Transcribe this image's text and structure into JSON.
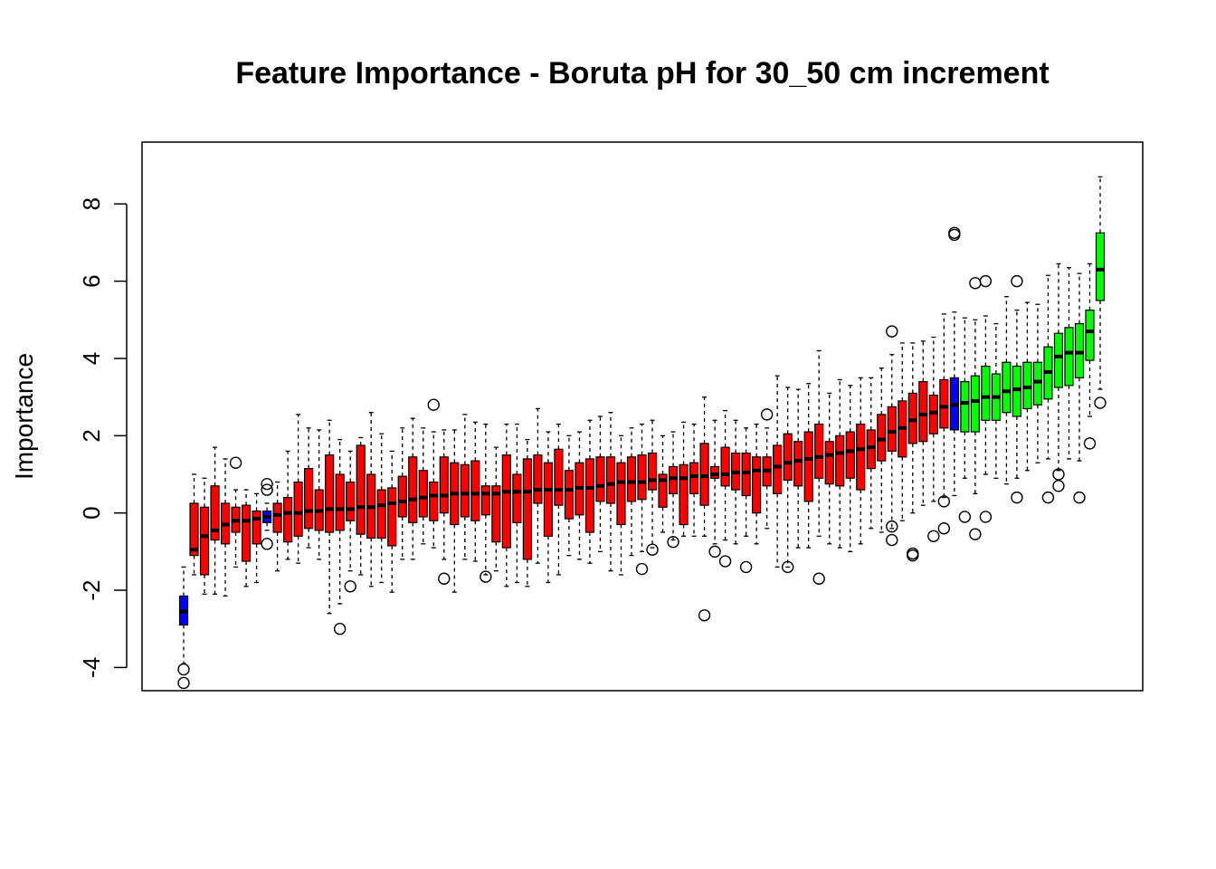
{
  "chart_data": {
    "type": "box",
    "title": "Feature Importance - Boruta pH for 30_50 cm increment",
    "xlabel": "",
    "ylabel": "Importance",
    "ylim": [
      -4.6,
      9.6
    ],
    "yticks": [
      -4,
      -2,
      0,
      2,
      4,
      6,
      8
    ],
    "colors": {
      "rejected": "#ff0000",
      "confirmed": "#00ff00",
      "shadow": "#0000ff",
      "median": "#000000"
    },
    "boxes": [
      {
        "status": "shadow",
        "wlo": -3.9,
        "q1": -2.9,
        "med": -2.55,
        "q3": -2.15,
        "whi": -1.4,
        "out": [
          -4.05,
          -4.4
        ]
      },
      {
        "status": "rejected",
        "wlo": -1.6,
        "q1": -1.1,
        "med": -0.95,
        "q3": 0.25,
        "whi": 1.0,
        "out": []
      },
      {
        "status": "rejected",
        "wlo": -2.1,
        "q1": -1.6,
        "med": -0.6,
        "q3": 0.15,
        "whi": 0.9,
        "out": []
      },
      {
        "status": "rejected",
        "wlo": -2.1,
        "q1": -0.7,
        "med": -0.45,
        "q3": 0.7,
        "whi": 1.7,
        "out": []
      },
      {
        "status": "rejected",
        "wlo": -2.15,
        "q1": -0.8,
        "med": -0.3,
        "q3": 0.25,
        "whi": 1.4,
        "out": []
      },
      {
        "status": "rejected",
        "wlo": -1.4,
        "q1": -0.5,
        "med": -0.2,
        "q3": 0.15,
        "whi": 0.6,
        "out": [
          1.3
        ]
      },
      {
        "status": "rejected",
        "wlo": -1.9,
        "q1": -1.25,
        "med": -0.2,
        "q3": 0.2,
        "whi": 0.6,
        "out": []
      },
      {
        "status": "rejected",
        "wlo": -1.8,
        "q1": -0.8,
        "med": -0.15,
        "q3": 0.05,
        "whi": 0.5,
        "out": []
      },
      {
        "status": "shadow",
        "wlo": -0.45,
        "q1": -0.25,
        "med": -0.1,
        "q3": 0.05,
        "whi": 0.25,
        "out": [
          0.75,
          0.6,
          -0.8
        ]
      },
      {
        "status": "rejected",
        "wlo": -1.5,
        "q1": -0.5,
        "med": -0.05,
        "q3": 0.25,
        "whi": 0.8,
        "out": []
      },
      {
        "status": "rejected",
        "wlo": -1.2,
        "q1": -0.75,
        "med": 0.0,
        "q3": 0.4,
        "whi": 1.6,
        "out": []
      },
      {
        "status": "rejected",
        "wlo": -1.3,
        "q1": -0.6,
        "med": 0.0,
        "q3": 0.8,
        "whi": 2.55,
        "out": []
      },
      {
        "status": "rejected",
        "wlo": -0.9,
        "q1": -0.4,
        "med": 0.05,
        "q3": 1.15,
        "whi": 2.2,
        "out": []
      },
      {
        "status": "rejected",
        "wlo": -1.2,
        "q1": -0.45,
        "med": 0.05,
        "q3": 0.6,
        "whi": 2.15,
        "out": []
      },
      {
        "status": "rejected",
        "wlo": -2.6,
        "q1": -0.5,
        "med": 0.1,
        "q3": 1.5,
        "whi": 2.4,
        "out": []
      },
      {
        "status": "rejected",
        "wlo": -2.35,
        "q1": -0.45,
        "med": 0.1,
        "q3": 1.0,
        "whi": 1.9,
        "out": [
          -3.0
        ]
      },
      {
        "status": "rejected",
        "wlo": -1.5,
        "q1": -0.2,
        "med": 0.1,
        "q3": 0.8,
        "whi": 1.6,
        "out": [
          -1.9
        ]
      },
      {
        "status": "rejected",
        "wlo": -1.6,
        "q1": -0.55,
        "med": 0.15,
        "q3": 1.75,
        "whi": 1.95,
        "out": []
      },
      {
        "status": "rejected",
        "wlo": -1.9,
        "q1": -0.65,
        "med": 0.15,
        "q3": 1.0,
        "whi": 2.6,
        "out": []
      },
      {
        "status": "rejected",
        "wlo": -1.8,
        "q1": -0.65,
        "med": 0.2,
        "q3": 0.6,
        "whi": 2.05,
        "out": []
      },
      {
        "status": "rejected",
        "wlo": -2.05,
        "q1": -0.85,
        "med": 0.25,
        "q3": 0.65,
        "whi": 1.6,
        "out": []
      },
      {
        "status": "rejected",
        "wlo": -1.2,
        "q1": -0.1,
        "med": 0.3,
        "q3": 0.95,
        "whi": 2.2,
        "out": []
      },
      {
        "status": "rejected",
        "wlo": -1.2,
        "q1": -0.25,
        "med": 0.35,
        "q3": 1.45,
        "whi": 2.45,
        "out": []
      },
      {
        "status": "rejected",
        "wlo": -0.8,
        "q1": -0.1,
        "med": 0.4,
        "q3": 1.1,
        "whi": 2.2,
        "out": []
      },
      {
        "status": "rejected",
        "wlo": -0.9,
        "q1": -0.2,
        "med": 0.45,
        "q3": 0.8,
        "whi": 2.1,
        "out": [
          2.8
        ]
      },
      {
        "status": "rejected",
        "wlo": -1.2,
        "q1": 0.0,
        "med": 0.45,
        "q3": 1.45,
        "whi": 2.15,
        "out": [
          -1.7
        ]
      },
      {
        "status": "rejected",
        "wlo": -2.05,
        "q1": -0.3,
        "med": 0.5,
        "q3": 1.3,
        "whi": 2.15,
        "out": []
      },
      {
        "status": "rejected",
        "wlo": -1.2,
        "q1": -0.1,
        "med": 0.5,
        "q3": 1.25,
        "whi": 2.55,
        "out": []
      },
      {
        "status": "rejected",
        "wlo": -1.25,
        "q1": -0.2,
        "med": 0.5,
        "q3": 1.35,
        "whi": 2.35,
        "out": []
      },
      {
        "status": "rejected",
        "wlo": -1.6,
        "q1": -0.05,
        "med": 0.5,
        "q3": 0.7,
        "whi": 2.3,
        "out": [
          -1.65
        ]
      },
      {
        "status": "rejected",
        "wlo": -1.5,
        "q1": -0.75,
        "med": 0.5,
        "q3": 0.7,
        "whi": 1.7,
        "out": []
      },
      {
        "status": "rejected",
        "wlo": -1.9,
        "q1": -0.9,
        "med": 0.55,
        "q3": 1.5,
        "whi": 2.3,
        "out": []
      },
      {
        "status": "rejected",
        "wlo": -1.8,
        "q1": -0.25,
        "med": 0.55,
        "q3": 1.0,
        "whi": 2.3,
        "out": []
      },
      {
        "status": "rejected",
        "wlo": -1.9,
        "q1": -1.2,
        "med": 0.55,
        "q3": 1.4,
        "whi": 1.9,
        "out": []
      },
      {
        "status": "rejected",
        "wlo": -1.3,
        "q1": 0.25,
        "med": 0.6,
        "q3": 1.5,
        "whi": 2.7,
        "out": []
      },
      {
        "status": "rejected",
        "wlo": -1.8,
        "q1": -0.6,
        "med": 0.6,
        "q3": 1.3,
        "whi": 2.1,
        "out": []
      },
      {
        "status": "rejected",
        "wlo": -1.6,
        "q1": 0.2,
        "med": 0.6,
        "q3": 1.65,
        "whi": 2.3,
        "out": []
      },
      {
        "status": "rejected",
        "wlo": -1.1,
        "q1": -0.15,
        "med": 0.6,
        "q3": 1.1,
        "whi": 2.0,
        "out": []
      },
      {
        "status": "rejected",
        "wlo": -1.2,
        "q1": -0.05,
        "med": 0.65,
        "q3": 1.3,
        "whi": 2.1,
        "out": []
      },
      {
        "status": "rejected",
        "wlo": -1.3,
        "q1": -0.5,
        "med": 0.65,
        "q3": 1.4,
        "whi": 2.4,
        "out": []
      },
      {
        "status": "rejected",
        "wlo": -1.0,
        "q1": 0.3,
        "med": 0.7,
        "q3": 1.45,
        "whi": 2.5,
        "out": []
      },
      {
        "status": "rejected",
        "wlo": -1.5,
        "q1": 0.25,
        "med": 0.75,
        "q3": 1.45,
        "whi": 2.6,
        "out": []
      },
      {
        "status": "rejected",
        "wlo": -1.6,
        "q1": -0.3,
        "med": 0.8,
        "q3": 1.3,
        "whi": 2.0,
        "out": []
      },
      {
        "status": "rejected",
        "wlo": -1.1,
        "q1": 0.3,
        "med": 0.8,
        "q3": 1.45,
        "whi": 2.2,
        "out": []
      },
      {
        "status": "rejected",
        "wlo": -1.0,
        "q1": 0.35,
        "med": 0.8,
        "q3": 1.5,
        "whi": 2.3,
        "out": [
          -1.45
        ]
      },
      {
        "status": "rejected",
        "wlo": -0.9,
        "q1": 0.6,
        "med": 0.85,
        "q3": 1.55,
        "whi": 2.4,
        "out": [
          -0.95
        ]
      },
      {
        "status": "rejected",
        "wlo": -0.5,
        "q1": 0.15,
        "med": 0.85,
        "q3": 1.0,
        "whi": 2.0,
        "out": []
      },
      {
        "status": "rejected",
        "wlo": -0.7,
        "q1": 0.5,
        "med": 0.9,
        "q3": 1.2,
        "whi": 2.1,
        "out": [
          -0.75
        ]
      },
      {
        "status": "rejected",
        "wlo": -0.6,
        "q1": -0.3,
        "med": 0.9,
        "q3": 1.25,
        "whi": 2.35,
        "out": []
      },
      {
        "status": "rejected",
        "wlo": -0.6,
        "q1": 0.5,
        "med": 0.95,
        "q3": 1.3,
        "whi": 2.3,
        "out": []
      },
      {
        "status": "rejected",
        "wlo": -0.6,
        "q1": 0.2,
        "med": 0.95,
        "q3": 1.8,
        "whi": 3.0,
        "out": [
          -2.65
        ]
      },
      {
        "status": "rejected",
        "wlo": -0.8,
        "q1": 0.9,
        "med": 1.0,
        "q3": 1.2,
        "whi": 2.4,
        "out": [
          -1.0
        ]
      },
      {
        "status": "rejected",
        "wlo": -0.7,
        "q1": 0.7,
        "med": 1.0,
        "q3": 1.7,
        "whi": 2.65,
        "out": [
          -1.25
        ]
      },
      {
        "status": "rejected",
        "wlo": -0.8,
        "q1": 0.6,
        "med": 1.05,
        "q3": 1.55,
        "whi": 2.4,
        "out": []
      },
      {
        "status": "rejected",
        "wlo": -0.6,
        "q1": 0.45,
        "med": 1.05,
        "q3": 1.55,
        "whi": 2.2,
        "out": [
          -1.4
        ]
      },
      {
        "status": "rejected",
        "wlo": -0.8,
        "q1": 0.0,
        "med": 1.1,
        "q3": 1.45,
        "whi": 2.3,
        "out": []
      },
      {
        "status": "rejected",
        "wlo": -0.4,
        "q1": 0.7,
        "med": 1.1,
        "q3": 1.45,
        "whi": 2.2,
        "out": [
          2.55
        ]
      },
      {
        "status": "rejected",
        "wlo": -1.4,
        "q1": 0.5,
        "med": 1.2,
        "q3": 1.75,
        "whi": 3.55,
        "out": []
      },
      {
        "status": "rejected",
        "wlo": -1.4,
        "q1": 0.85,
        "med": 1.3,
        "q3": 2.05,
        "whi": 3.25,
        "out": [
          -1.4
        ]
      },
      {
        "status": "rejected",
        "wlo": -0.9,
        "q1": 0.7,
        "med": 1.35,
        "q3": 1.85,
        "whi": 3.2,
        "out": []
      },
      {
        "status": "rejected",
        "wlo": -0.9,
        "q1": 0.3,
        "med": 1.4,
        "q3": 2.1,
        "whi": 3.35,
        "out": []
      },
      {
        "status": "rejected",
        "wlo": -0.6,
        "q1": 0.9,
        "med": 1.45,
        "q3": 2.3,
        "whi": 4.2,
        "out": [
          -1.7
        ]
      },
      {
        "status": "rejected",
        "wlo": -0.8,
        "q1": 0.75,
        "med": 1.5,
        "q3": 1.85,
        "whi": 3.1,
        "out": []
      },
      {
        "status": "rejected",
        "wlo": -0.9,
        "q1": 0.7,
        "med": 1.55,
        "q3": 2.0,
        "whi": 3.45,
        "out": []
      },
      {
        "status": "rejected",
        "wlo": -1.0,
        "q1": 0.9,
        "med": 1.6,
        "q3": 2.1,
        "whi": 3.3,
        "out": []
      },
      {
        "status": "rejected",
        "wlo": -0.8,
        "q1": 0.6,
        "med": 1.65,
        "q3": 2.3,
        "whi": 3.5,
        "out": []
      },
      {
        "status": "rejected",
        "wlo": -0.4,
        "q1": 1.15,
        "med": 1.7,
        "q3": 2.15,
        "whi": 3.5,
        "out": []
      },
      {
        "status": "rejected",
        "wlo": -0.5,
        "q1": 1.35,
        "med": 1.9,
        "q3": 2.55,
        "whi": 3.75,
        "out": []
      },
      {
        "status": "rejected",
        "wlo": -0.4,
        "q1": 1.6,
        "med": 2.1,
        "q3": 2.75,
        "whi": 4.1,
        "out": [
          -0.35,
          -0.7,
          4.7
        ]
      },
      {
        "status": "rejected",
        "wlo": -0.2,
        "q1": 1.45,
        "med": 2.2,
        "q3": 2.9,
        "whi": 4.4,
        "out": []
      },
      {
        "status": "rejected",
        "wlo": 0.0,
        "q1": 1.8,
        "med": 2.4,
        "q3": 3.1,
        "whi": 4.4,
        "out": [
          -1.05,
          -1.1
        ]
      },
      {
        "status": "rejected",
        "wlo": 0.2,
        "q1": 1.85,
        "med": 2.55,
        "q3": 3.4,
        "whi": 4.45,
        "out": []
      },
      {
        "status": "rejected",
        "wlo": 0.3,
        "q1": 2.05,
        "med": 2.6,
        "q3": 3.05,
        "whi": 4.55,
        "out": [
          -0.6
        ]
      },
      {
        "status": "rejected",
        "wlo": 0.4,
        "q1": 2.2,
        "med": 2.75,
        "q3": 3.45,
        "whi": 5.15,
        "out": [
          0.3,
          -0.4
        ]
      },
      {
        "status": "shadow",
        "wlo": 0.45,
        "q1": 2.15,
        "med": 2.8,
        "q3": 3.5,
        "whi": 5.2,
        "out": [
          7.25,
          7.2
        ]
      },
      {
        "status": "confirmed",
        "wlo": 0.9,
        "q1": 2.1,
        "med": 2.85,
        "q3": 3.4,
        "whi": 5.05,
        "out": [
          -0.1
        ]
      },
      {
        "status": "confirmed",
        "wlo": 0.5,
        "q1": 2.1,
        "med": 2.9,
        "q3": 3.55,
        "whi": 5.0,
        "out": [
          5.95,
          -0.55
        ]
      },
      {
        "status": "confirmed",
        "wlo": 1.0,
        "q1": 2.4,
        "med": 3.0,
        "q3": 3.8,
        "whi": 5.1,
        "out": [
          6.0,
          -0.1
        ]
      },
      {
        "status": "confirmed",
        "wlo": 0.9,
        "q1": 2.4,
        "med": 3.0,
        "q3": 3.6,
        "whi": 4.9,
        "out": []
      },
      {
        "status": "confirmed",
        "wlo": 0.75,
        "q1": 2.6,
        "med": 3.15,
        "q3": 3.9,
        "whi": 5.6,
        "out": []
      },
      {
        "status": "confirmed",
        "wlo": 0.9,
        "q1": 2.5,
        "med": 3.2,
        "q3": 3.8,
        "whi": 5.25,
        "out": [
          6.0,
          0.4
        ]
      },
      {
        "status": "confirmed",
        "wlo": 1.1,
        "q1": 2.7,
        "med": 3.25,
        "q3": 3.9,
        "whi": 5.45,
        "out": []
      },
      {
        "status": "confirmed",
        "wlo": 1.3,
        "q1": 2.8,
        "med": 3.4,
        "q3": 3.9,
        "whi": 5.4,
        "out": []
      },
      {
        "status": "confirmed",
        "wlo": 1.4,
        "q1": 2.95,
        "med": 3.65,
        "q3": 4.3,
        "whi": 6.15,
        "out": [
          0.4
        ]
      },
      {
        "status": "confirmed",
        "wlo": 1.1,
        "q1": 3.25,
        "med": 4.05,
        "q3": 4.65,
        "whi": 6.45,
        "out": [
          1.0,
          0.7
        ]
      },
      {
        "status": "confirmed",
        "wlo": 1.4,
        "q1": 3.3,
        "med": 4.15,
        "q3": 4.8,
        "whi": 6.35,
        "out": []
      },
      {
        "status": "confirmed",
        "wlo": 1.35,
        "q1": 3.5,
        "med": 4.15,
        "q3": 4.9,
        "whi": 6.2,
        "out": [
          0.4
        ]
      },
      {
        "status": "confirmed",
        "wlo": 2.5,
        "q1": 3.95,
        "med": 4.7,
        "q3": 5.25,
        "whi": 6.45,
        "out": [
          1.8
        ]
      },
      {
        "status": "confirmed",
        "wlo": 3.2,
        "q1": 5.5,
        "med": 6.3,
        "q3": 7.25,
        "whi": 8.7,
        "out": [
          2.85
        ]
      }
    ]
  }
}
